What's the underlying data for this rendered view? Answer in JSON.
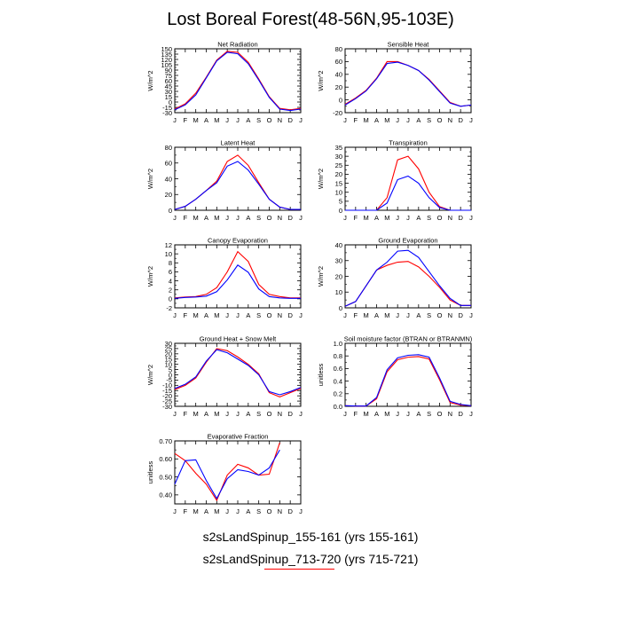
{
  "title": "Lost Boreal Forest(48-56N,95-103E)",
  "legend": {
    "entries": [
      {
        "label": "s2sLandSpinup_155-161 (yrs 155-161)",
        "color": "#0000ff"
      },
      {
        "label": "s2sLandSpinup_713-720 (yrs 715-721)",
        "color": "#ff0000"
      }
    ]
  },
  "chart_data": [
    {
      "type": "line",
      "title": "Net Radiation",
      "ylabel": "W/m^2",
      "ylim": [
        -30,
        150
      ],
      "yticks": [
        -30,
        -15,
        0,
        15,
        30,
        45,
        60,
        75,
        90,
        105,
        120,
        135,
        150
      ],
      "categories": [
        "J",
        "F",
        "M",
        "A",
        "M",
        "J",
        "J",
        "A",
        "S",
        "O",
        "N",
        "D",
        "J"
      ],
      "series": [
        {
          "color": "#ff0000",
          "values": [
            -20,
            -5,
            25,
            70,
            118,
            143,
            140,
            112,
            65,
            15,
            -18,
            -22,
            -18
          ]
        },
        {
          "color": "#0000ff",
          "values": [
            -22,
            -8,
            20,
            68,
            116,
            140,
            136,
            108,
            62,
            13,
            -20,
            -24,
            -20
          ]
        }
      ]
    },
    {
      "type": "line",
      "title": "Sensible Heat",
      "ylabel": "W/m^2",
      "ylim": [
        -20,
        80
      ],
      "yticks": [
        -20,
        0,
        20,
        40,
        60,
        80
      ],
      "categories": [
        "J",
        "F",
        "M",
        "A",
        "M",
        "J",
        "J",
        "A",
        "S",
        "O",
        "N",
        "D",
        "J"
      ],
      "series": [
        {
          "color": "#ff0000",
          "values": [
            -7,
            3,
            15,
            34,
            60,
            60,
            54,
            46,
            32,
            14,
            -4,
            -10,
            -8
          ]
        },
        {
          "color": "#0000ff",
          "values": [
            -8,
            2,
            14,
            33,
            57,
            59,
            54,
            46,
            31,
            13,
            -5,
            -10,
            -8
          ]
        }
      ]
    },
    {
      "type": "line",
      "title": "Latent Heat",
      "ylabel": "W/m^2",
      "ylim": [
        0,
        80
      ],
      "yticks": [
        0,
        20,
        40,
        60,
        80
      ],
      "categories": [
        "J",
        "F",
        "M",
        "A",
        "M",
        "J",
        "J",
        "A",
        "S",
        "O",
        "N",
        "D",
        "J"
      ],
      "series": [
        {
          "color": "#ff0000",
          "values": [
            1,
            5,
            14,
            25,
            37,
            62,
            70,
            57,
            35,
            14,
            4,
            1,
            1
          ]
        },
        {
          "color": "#0000ff",
          "values": [
            1,
            5,
            14,
            25,
            35,
            56,
            62,
            51,
            33,
            14,
            4,
            1,
            1
          ]
        }
      ]
    },
    {
      "type": "line",
      "title": "Transpiration",
      "ylabel": "W/m^2",
      "ylim": [
        0,
        35
      ],
      "yticks": [
        0,
        5,
        10,
        15,
        20,
        25,
        30,
        35
      ],
      "categories": [
        "J",
        "F",
        "M",
        "A",
        "M",
        "J",
        "J",
        "A",
        "S",
        "O",
        "N",
        "D",
        "J"
      ],
      "series": [
        {
          "color": "#ff0000",
          "values": [
            0,
            0,
            0,
            0,
            7,
            28,
            30,
            23,
            10,
            2,
            0,
            0,
            0
          ]
        },
        {
          "color": "#0000ff",
          "values": [
            0,
            0,
            0,
            0,
            4,
            17,
            19,
            15,
            7,
            1.5,
            0,
            0,
            0
          ]
        }
      ]
    },
    {
      "type": "line",
      "title": "Canopy Evaporation",
      "ylabel": "W/m^2",
      "ylim": [
        -2,
        12
      ],
      "yticks": [
        -2,
        0,
        2,
        4,
        6,
        8,
        10,
        12
      ],
      "categories": [
        "J",
        "F",
        "M",
        "A",
        "M",
        "J",
        "J",
        "A",
        "S",
        "O",
        "N",
        "D",
        "J"
      ],
      "series": [
        {
          "color": "#ff0000",
          "values": [
            0.2,
            0.4,
            0.5,
            1.0,
            2.5,
            6.0,
            10.5,
            8.3,
            3.2,
            1.0,
            0.5,
            0.2,
            0.2
          ]
        },
        {
          "color": "#0000ff",
          "values": [
            0.1,
            0.3,
            0.4,
            0.6,
            1.6,
            4.2,
            7.5,
            5.9,
            2.2,
            0.5,
            0.2,
            0.1,
            0.1
          ]
        }
      ]
    },
    {
      "type": "line",
      "title": "Ground Evaporation",
      "ylabel": "W/m^2",
      "ylim": [
        0,
        40
      ],
      "yticks": [
        0,
        10,
        20,
        30,
        40
      ],
      "categories": [
        "J",
        "F",
        "M",
        "A",
        "M",
        "J",
        "J",
        "A",
        "S",
        "O",
        "N",
        "D",
        "J"
      ],
      "series": [
        {
          "color": "#ff0000",
          "values": [
            1,
            4,
            14,
            24,
            27,
            29,
            29.5,
            26,
            20,
            13,
            5,
            1.5,
            1.5
          ]
        },
        {
          "color": "#0000ff",
          "values": [
            1,
            4,
            14,
            24,
            29,
            36,
            36.5,
            32,
            23,
            14,
            6,
            1.5,
            1.5
          ]
        }
      ]
    },
    {
      "type": "line",
      "title": "Ground Heat + Snow Melt",
      "ylabel": "W/m^2",
      "ylim": [
        -30,
        30
      ],
      "yticks": [
        -30,
        -25,
        -20,
        -15,
        -10,
        -5,
        0,
        5,
        10,
        15,
        20,
        25,
        30
      ],
      "categories": [
        "J",
        "F",
        "M",
        "A",
        "M",
        "J",
        "J",
        "A",
        "S",
        "O",
        "N",
        "D",
        "J"
      ],
      "series": [
        {
          "color": "#ff0000",
          "values": [
            -14,
            -10,
            -3,
            12,
            25,
            23,
            17,
            10,
            1,
            -17,
            -21,
            -17,
            -13
          ]
        },
        {
          "color": "#0000ff",
          "values": [
            -13,
            -9,
            -2,
            13,
            24,
            21,
            15,
            9,
            0,
            -16,
            -19,
            -16,
            -12
          ]
        }
      ]
    },
    {
      "type": "line",
      "title": "Soil moisture factor (BTRAN or BTRANMN)",
      "ylabel": "unitless",
      "ylim": [
        0,
        1
      ],
      "yticks": [
        "0.0",
        "0.2",
        "0.4",
        "0.6",
        "0.8",
        "1.0"
      ],
      "categories": [
        "J",
        "F",
        "M",
        "A",
        "M",
        "J",
        "J",
        "A",
        "S",
        "O",
        "N",
        "D",
        "J"
      ],
      "series": [
        {
          "color": "#ff0000",
          "values": [
            0.01,
            0.005,
            0.005,
            0.12,
            0.55,
            0.74,
            0.78,
            0.79,
            0.75,
            0.42,
            0.06,
            0.02,
            0.01
          ]
        },
        {
          "color": "#0000ff",
          "values": [
            0.01,
            0.005,
            0.005,
            0.14,
            0.58,
            0.77,
            0.81,
            0.82,
            0.78,
            0.45,
            0.08,
            0.03,
            0.01
          ]
        }
      ]
    },
    {
      "type": "line",
      "title": "Evaporative Fraction",
      "ylabel": "unitless",
      "ylim": [
        0.35,
        0.7
      ],
      "yticks": [
        "0.40",
        "0.50",
        "0.60",
        "0.70"
      ],
      "categories": [
        "J",
        "F",
        "M",
        "A",
        "M",
        "J",
        "J",
        "A",
        "S",
        "O",
        "N",
        "D",
        "J"
      ],
      "series": [
        {
          "color": "#ff0000",
          "values": [
            0.63,
            0.59,
            0.52,
            0.46,
            0.37,
            0.51,
            0.57,
            0.55,
            0.51,
            0.515,
            0.69,
            null,
            null
          ]
        },
        {
          "color": "#0000ff",
          "values": [
            0.46,
            0.59,
            0.595,
            0.48,
            0.38,
            0.49,
            0.54,
            0.53,
            0.51,
            0.55,
            0.65,
            null,
            null
          ]
        }
      ]
    }
  ]
}
